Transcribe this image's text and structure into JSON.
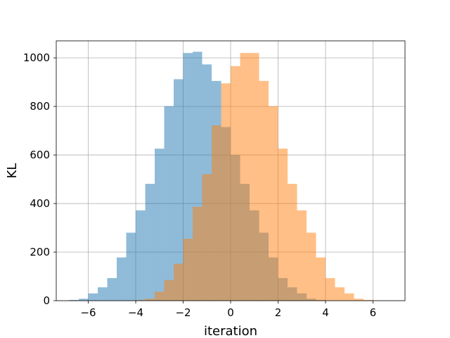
{
  "chart_data": {
    "type": "bar",
    "subtype": "overlapping-histogram",
    "title": "",
    "xlabel": "iteration",
    "ylabel": "KL",
    "xlim": [
      -7.35,
      7.35
    ],
    "ylim": [
      0,
      1070
    ],
    "xticks": [
      -6,
      -4,
      -2,
      0,
      2,
      4,
      6
    ],
    "xtick_labels": [
      "−6",
      "−4",
      "−2",
      "0",
      "2",
      "4",
      "6"
    ],
    "yticks": [
      0,
      200,
      400,
      600,
      800,
      1000
    ],
    "ytick_labels": [
      "0",
      "200",
      "400",
      "600",
      "800",
      "1000"
    ],
    "grid": true,
    "legend": "none",
    "series": [
      {
        "color": "#1f77b4",
        "opacity": 0.5,
        "bin_width": 0.4,
        "x_start": -6.8,
        "values": [
          3,
          8,
          30,
          55,
          93,
          178,
          280,
          372,
          481,
          626,
          801,
          912,
          1020,
          1025,
          973,
          905,
          715,
          600,
          481,
          372,
          280,
          178,
          93,
          55,
          30,
          8,
          3
        ]
      },
      {
        "color": "#ff7f0e",
        "opacity": 0.5,
        "bin_width": 0.4,
        "x_start": -4.0,
        "values": [
          3,
          8,
          37,
          85,
          152,
          255,
          387,
          521,
          722,
          895,
          966,
          1020,
          1020,
          905,
          801,
          626,
          481,
          372,
          280,
          178,
          93,
          55,
          30,
          8,
          3
        ]
      }
    ]
  }
}
